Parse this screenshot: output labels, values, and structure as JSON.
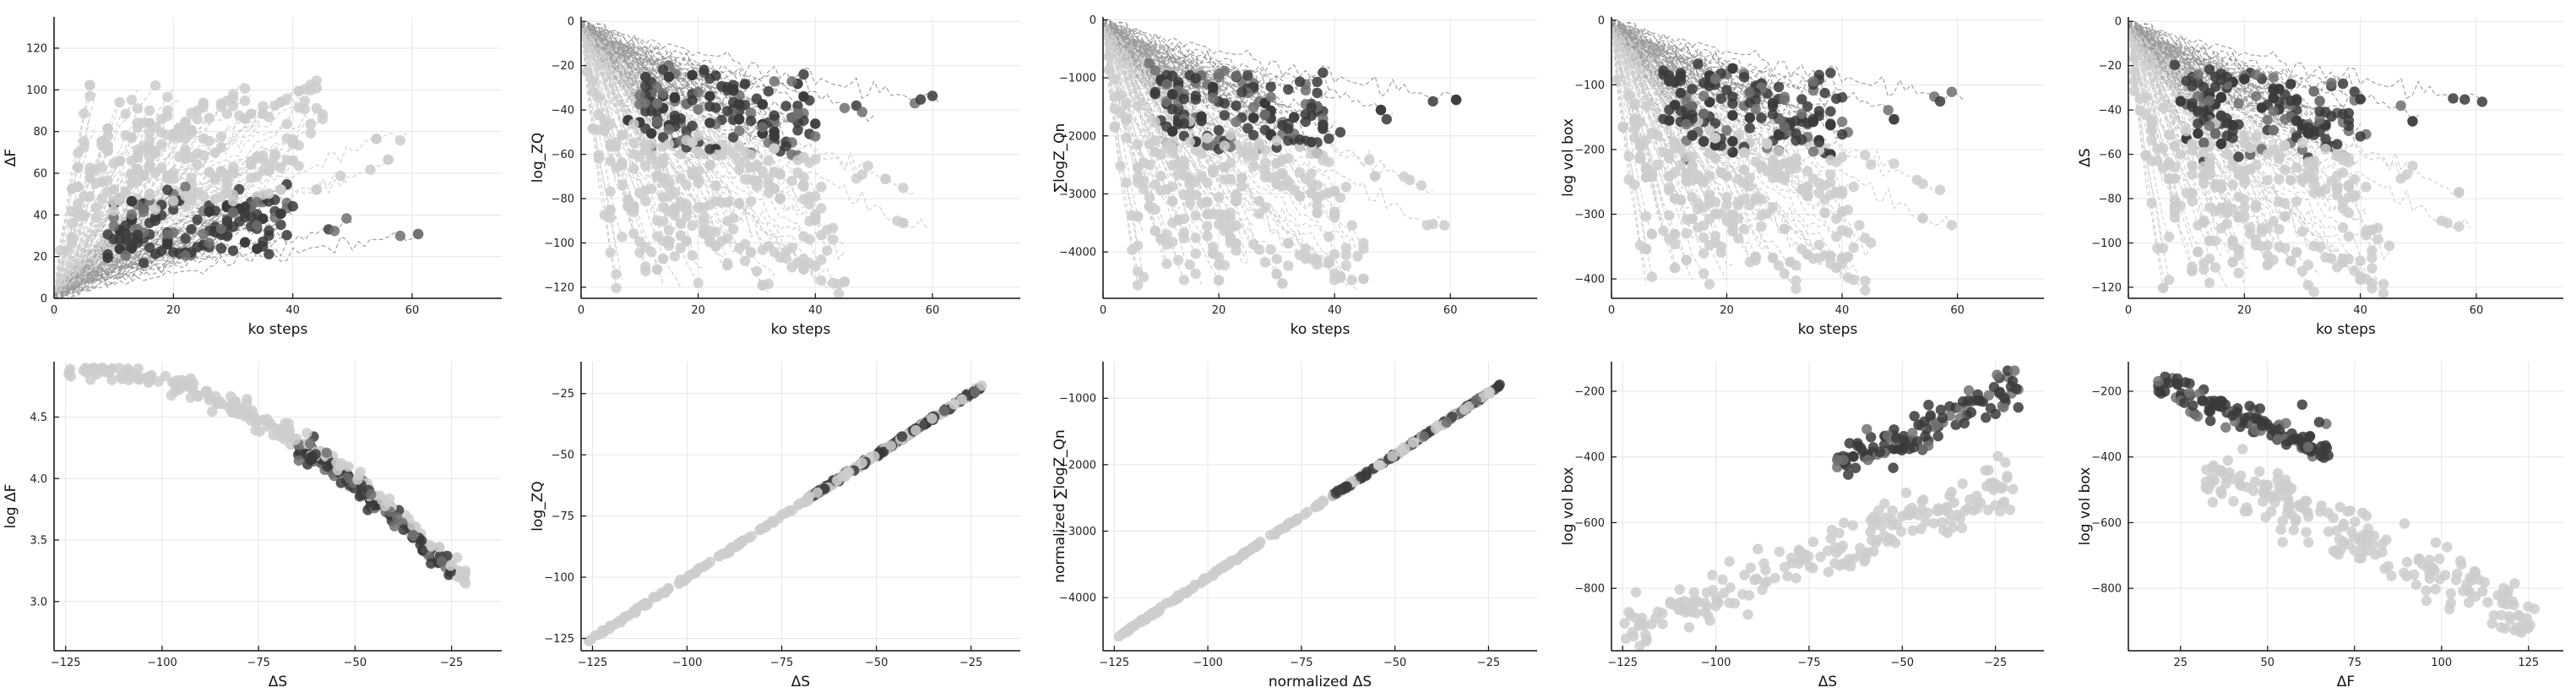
{
  "colors": {
    "light": "#cdcdcd",
    "dark": "#3a3a3a",
    "mid": "#707070",
    "line_light": "#cfcfcf",
    "line_dark": "#9a9a9a"
  },
  "chart_data": [
    {
      "type": "scatter",
      "panel": "top-1",
      "xlabel": "ko steps",
      "ylabel": "ΔF",
      "xlim": [
        0,
        75
      ],
      "ylim": [
        0,
        135
      ],
      "xticks": [
        0,
        20,
        40,
        60
      ],
      "yticks": [
        0,
        20,
        40,
        60,
        80,
        100,
        120
      ],
      "xtick_labels": [
        "0",
        "20",
        "40",
        "60"
      ],
      "ytick_labels": [
        "0",
        "20",
        "40",
        "60",
        "80",
        "100",
        "120"
      ]
    },
    {
      "type": "scatter",
      "panel": "top-2",
      "xlabel": "ko steps",
      "ylabel": "log_ZQ",
      "xlim": [
        0,
        75
      ],
      "ylim": [
        -125,
        2
      ],
      "xticks": [
        0,
        20,
        40,
        60
      ],
      "yticks": [
        0,
        -20,
        -40,
        -60,
        -80,
        -100,
        -120
      ],
      "xtick_labels": [
        "0",
        "20",
        "40",
        "60"
      ],
      "ytick_labels": [
        "0",
        "−20",
        "−40",
        "−60",
        "−80",
        "−100",
        "−120"
      ]
    },
    {
      "type": "scatter",
      "panel": "top-3",
      "xlabel": "ko steps",
      "ylabel": "∑logZ_Qn",
      "xlim": [
        0,
        75
      ],
      "ylim": [
        -4800,
        50
      ],
      "xticks": [
        0,
        20,
        40,
        60
      ],
      "yticks": [
        0,
        -1000,
        -2000,
        -3000,
        -4000
      ],
      "xtick_labels": [
        "0",
        "20",
        "40",
        "60"
      ],
      "ytick_labels": [
        "0",
        "−1000",
        "−2000",
        "−3000",
        "−4000"
      ]
    },
    {
      "type": "scatter",
      "panel": "top-4",
      "xlabel": "ko steps",
      "ylabel": "log vol box",
      "xlim": [
        0,
        75
      ],
      "ylim": [
        -430,
        5
      ],
      "xticks": [
        0,
        20,
        40,
        60
      ],
      "yticks": [
        0,
        -100,
        -200,
        -300,
        -400
      ],
      "xtick_labels": [
        "0",
        "20",
        "40",
        "60"
      ],
      "ytick_labels": [
        "0",
        "−100",
        "−200",
        "−300",
        "−400"
      ]
    },
    {
      "type": "scatter",
      "panel": "top-5",
      "xlabel": "ko steps",
      "ylabel": "ΔS",
      "xlim": [
        0,
        75
      ],
      "ylim": [
        -125,
        2
      ],
      "xticks": [
        0,
        20,
        40,
        60
      ],
      "yticks": [
        0,
        -20,
        -40,
        -60,
        -80,
        -100,
        -120
      ],
      "xtick_labels": [
        "0",
        "20",
        "40",
        "60"
      ],
      "ytick_labels": [
        "0",
        "−20",
        "−40",
        "−60",
        "−80",
        "−100",
        "−120"
      ]
    },
    {
      "type": "scatter",
      "panel": "bottom-1",
      "xlabel": "ΔS",
      "ylabel": "log ΔF",
      "xlim": [
        -128,
        -12
      ],
      "ylim": [
        2.6,
        4.95
      ],
      "xticks": [
        -125,
        -100,
        -75,
        -50,
        -25
      ],
      "yticks": [
        3.0,
        3.5,
        4.0,
        4.5
      ],
      "xtick_labels": [
        "−125",
        "−100",
        "−75",
        "−50",
        "−25"
      ],
      "ytick_labels": [
        "3.0",
        "3.5",
        "4.0",
        "4.5"
      ]
    },
    {
      "type": "scatter",
      "panel": "bottom-2",
      "xlabel": "ΔS",
      "ylabel": "log_ZQ",
      "xlim": [
        -128,
        -12
      ],
      "ylim": [
        -130,
        -12
      ],
      "xticks": [
        -125,
        -100,
        -75,
        -50,
        -25
      ],
      "yticks": [
        -25,
        -50,
        -75,
        -100,
        -125
      ],
      "xtick_labels": [
        "−125",
        "−100",
        "−75",
        "−50",
        "−25"
      ],
      "ytick_labels": [
        "−25",
        "−50",
        "−75",
        "−100",
        "−125"
      ]
    },
    {
      "type": "scatter",
      "panel": "bottom-3",
      "xlabel": "normalized ΔS",
      "ylabel": "normalized ∑logZ_Qn",
      "xlim": [
        -128,
        -12
      ],
      "ylim": [
        -4800,
        -450
      ],
      "xticks": [
        -125,
        -100,
        -75,
        -50,
        -25
      ],
      "yticks": [
        -1000,
        -2000,
        -3000,
        -4000
      ],
      "xtick_labels": [
        "−125",
        "−100",
        "−75",
        "−50",
        "−25"
      ],
      "ytick_labels": [
        "−1000",
        "−2000",
        "−3000",
        "−4000"
      ]
    },
    {
      "type": "scatter",
      "panel": "bottom-4",
      "xlabel": "ΔS",
      "ylabel": "log vol box",
      "xlim": [
        -128,
        -12
      ],
      "ylim": [
        -990,
        -110
      ],
      "xticks": [
        -125,
        -100,
        -75,
        -50,
        -25
      ],
      "yticks": [
        -200,
        -400,
        -600,
        -800
      ],
      "xtick_labels": [
        "−125",
        "−100",
        "−75",
        "−50",
        "−25"
      ],
      "ytick_labels": [
        "−200",
        "−400",
        "−600",
        "−800"
      ]
    },
    {
      "type": "scatter",
      "panel": "bottom-5",
      "xlabel": "ΔF",
      "ylabel": "log vol box",
      "xlim": [
        10,
        135
      ],
      "ylim": [
        -990,
        -110
      ],
      "xticks": [
        25,
        50,
        75,
        100,
        125
      ],
      "yticks": [
        -200,
        -400,
        -600,
        -800
      ],
      "xtick_labels": [
        "25",
        "50",
        "75",
        "100",
        "125"
      ],
      "ytick_labels": [
        "−200",
        "−400",
        "−600",
        "−800"
      ]
    }
  ]
}
